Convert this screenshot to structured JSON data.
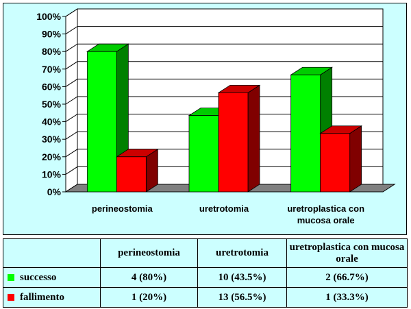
{
  "chart_data": {
    "type": "bar",
    "categories": [
      "perineostomia",
      "uretrotomia",
      "uretroplastica con mucosa orale"
    ],
    "series": [
      {
        "name": "successo",
        "values": [
          80,
          43.5,
          66.7
        ],
        "color": "#00ff00"
      },
      {
        "name": "fallimento",
        "values": [
          20,
          56.5,
          33.3
        ],
        "color": "#ff0000"
      }
    ],
    "ylim": [
      0,
      100
    ],
    "y_ticks": [
      "0%",
      "10%",
      "20%",
      "30%",
      "40%",
      "50%",
      "60%",
      "70%",
      "80%",
      "90%",
      "100%"
    ],
    "grid": true,
    "background_color": "#ccffff"
  },
  "table": {
    "headers": [
      "",
      "perineostomia",
      "uretrotomia",
      "uretroplastica con mucosa orale"
    ],
    "rows": [
      {
        "label": "successo",
        "color": "#00ff00",
        "cells": [
          "4 (80%)",
          "10 (43.5%)",
          "2 (66.7%)"
        ]
      },
      {
        "label": "fallimento",
        "color": "#ff0000",
        "cells": [
          "1 (20%)",
          "13 (56.5%)",
          "1 (33.3%)"
        ]
      }
    ]
  }
}
